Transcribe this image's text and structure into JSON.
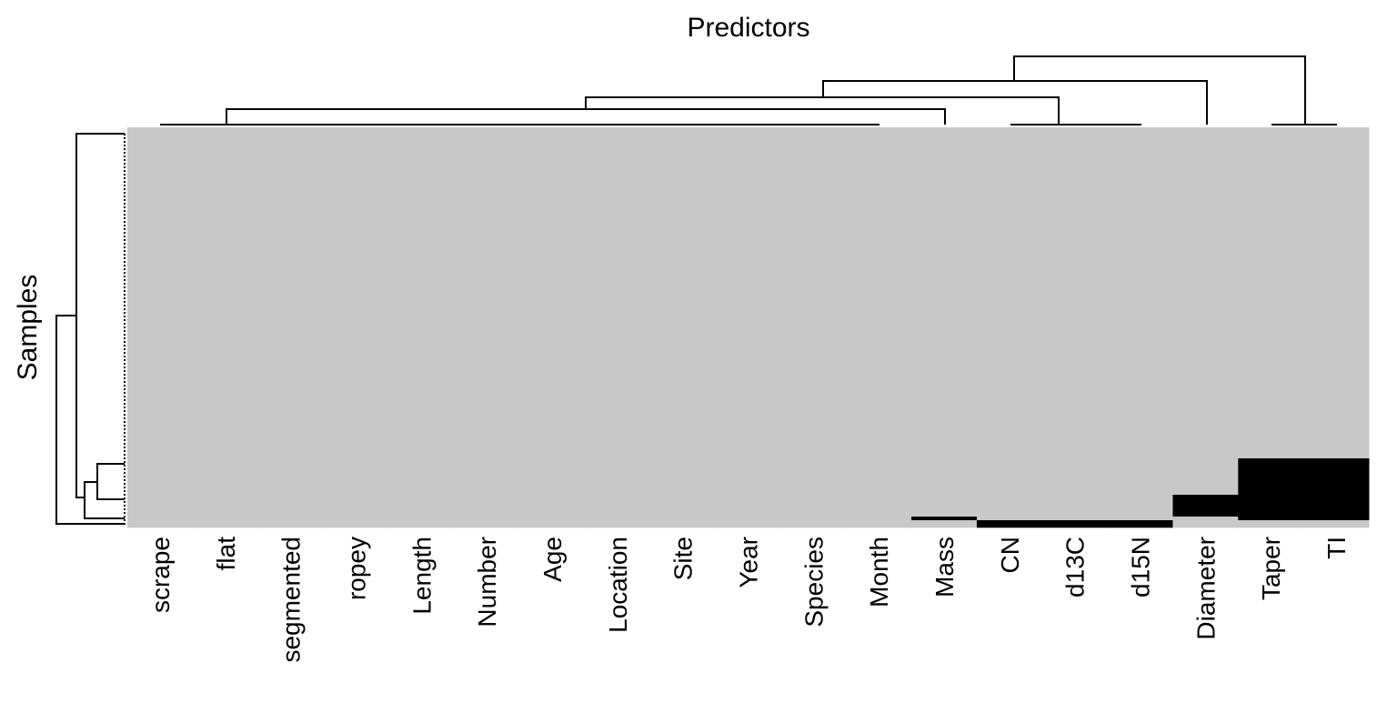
{
  "chart_data": {
    "type": "heatmap",
    "title": "Predictors",
    "y_label": "Samples",
    "columns": [
      "scrape",
      "flat",
      "segmented",
      "ropey",
      "Length",
      "Number",
      "Age",
      "Location",
      "Site",
      "Year",
      "Species",
      "Month",
      "Mass",
      "CN",
      "d13C",
      "d15N",
      "Diameter",
      "Taper",
      "TI"
    ],
    "row_groups": [
      {
        "count": 91,
        "missing": [
          0,
          0,
          0,
          0,
          0,
          0,
          0,
          0,
          0,
          0,
          0,
          0,
          0,
          0,
          0,
          0,
          0,
          0,
          0
        ]
      },
      {
        "count": 10,
        "missing": [
          0,
          0,
          0,
          0,
          0,
          0,
          0,
          0,
          0,
          0,
          0,
          0,
          0,
          0,
          0,
          0,
          0,
          1,
          1
        ]
      },
      {
        "count": 6,
        "missing": [
          0,
          0,
          0,
          0,
          0,
          0,
          0,
          0,
          0,
          0,
          0,
          0,
          0,
          0,
          0,
          0,
          1,
          1,
          1
        ]
      },
      {
        "count": 1,
        "missing": [
          0,
          0,
          0,
          0,
          0,
          0,
          0,
          0,
          0,
          0,
          0,
          0,
          1,
          0,
          0,
          0,
          0,
          1,
          1
        ]
      },
      {
        "count": 2,
        "missing": [
          0,
          0,
          0,
          0,
          0,
          0,
          0,
          0,
          0,
          0,
          0,
          0,
          0,
          1,
          1,
          1,
          0,
          0,
          0
        ]
      }
    ],
    "colors": {
      "present": "#c8c8c8",
      "missing": "#000000"
    }
  }
}
